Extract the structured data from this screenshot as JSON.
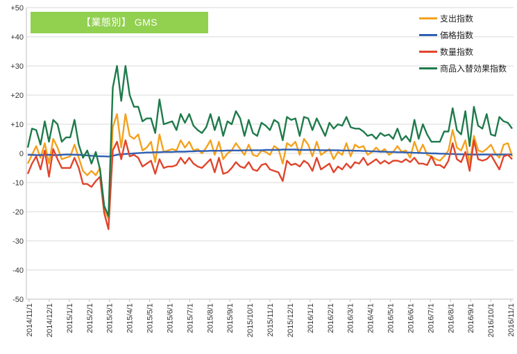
{
  "chart_data": {
    "type": "line",
    "title": "【業態別】 GMS",
    "ylim": [
      -50,
      50
    ],
    "y_ticks": [
      "+50",
      "+40",
      "+30",
      "+20",
      "+10",
      "0",
      "-10",
      "-20",
      "-30",
      "-40",
      "-50"
    ],
    "x_tick_labels": [
      "2014/11/1",
      "2014/12/1",
      "2015/1/1",
      "2015/2/1",
      "2015/3/1",
      "2015/4/1",
      "2015/5/1",
      "2015/6/1",
      "2015/7/1",
      "2015/8/1",
      "2015/9/1",
      "2015/10/1",
      "2015/11/1",
      "2015/12/1",
      "2016/1/1",
      "2016/2/1",
      "2016/3/1",
      "2016/4/1",
      "2016/5/1",
      "2016/6/1",
      "2016/7/1",
      "2016/8/1",
      "2016/9/1",
      "2016/10/1",
      "2016/11/1"
    ],
    "grid": "horizontal",
    "legend_position": "top-right",
    "series": [
      {
        "name": "支出指数",
        "color": "#f4a11c",
        "values": [
          -3.5,
          -0.5,
          2.5,
          -1.5,
          3.5,
          -3.5,
          5.0,
          2.0,
          -2.0,
          -1.5,
          -1.0,
          3.0,
          -1.5,
          -6.0,
          -7.5,
          -6.0,
          -7.5,
          -5.0,
          -19.0,
          -22.5,
          9.0,
          13.5,
          2.0,
          13.5,
          6.0,
          5.0,
          6.5,
          1.0,
          2.0,
          4.0,
          -3.0,
          6.5,
          0.5,
          1.0,
          1.5,
          1.0,
          4.5,
          2.0,
          4.0,
          1.0,
          1.5,
          0.0,
          2.0,
          4.5,
          -0.5,
          4.0,
          -2.0,
          0.0,
          1.0,
          3.5,
          1.5,
          -0.5,
          3.0,
          -0.5,
          -1.0,
          1.0,
          0.5,
          -0.5,
          2.5,
          1.5,
          -3.5,
          3.5,
          2.5,
          4.0,
          -0.5,
          5.0,
          3.0,
          -1.0,
          4.0,
          -0.5,
          0.5,
          1.5,
          -2.0,
          0.5,
          -0.5,
          3.5,
          -1.0,
          3.0,
          2.0,
          2.5,
          -0.5,
          0.5,
          2.0,
          0.5,
          1.5,
          -0.5,
          0.5,
          2.5,
          0.5,
          1.0,
          -1.5,
          4.0,
          0.0,
          3.0,
          -0.5,
          -1.0,
          -2.0,
          -2.5,
          -1.0,
          1.0,
          8.0,
          2.0,
          1.0,
          4.5,
          -3.5,
          6.0,
          1.0,
          0.5,
          1.5,
          3.0,
          0.0,
          -1.5,
          3.0,
          3.5,
          -1.0
        ]
      },
      {
        "name": "価格指数",
        "color": "#2e5fb4",
        "values": [
          -0.5,
          -0.5,
          -0.6,
          -0.6,
          -0.5,
          -0.5,
          -0.6,
          -0.6,
          -0.5,
          -0.4,
          -0.4,
          -0.5,
          -0.5,
          -0.6,
          -0.7,
          -0.8,
          -0.9,
          -1.0,
          -1.0,
          -1.1,
          -0.8,
          -0.5,
          -0.3,
          -0.2,
          -0.1,
          0.0,
          0.1,
          0.2,
          0.3,
          0.3,
          0.4,
          0.4,
          0.5,
          0.5,
          0.5,
          0.6,
          0.6,
          0.6,
          0.7,
          0.7,
          0.8,
          0.8,
          0.8,
          0.9,
          0.9,
          0.9,
          0.9,
          1.0,
          1.0,
          1.0,
          1.0,
          1.1,
          1.1,
          1.1,
          1.1,
          1.1,
          1.2,
          1.2,
          1.2,
          1.2,
          1.3,
          1.3,
          1.3,
          1.3,
          1.2,
          1.2,
          1.2,
          1.2,
          1.2,
          1.1,
          1.1,
          1.1,
          1.1,
          1.1,
          1.0,
          1.0,
          1.0,
          0.9,
          0.9,
          0.8,
          0.8,
          0.7,
          0.7,
          0.6,
          0.6,
          0.5,
          0.5,
          0.4,
          0.4,
          0.3,
          0.3,
          0.2,
          0.2,
          0.1,
          0.1,
          0.0,
          0.0,
          -0.1,
          -0.1,
          -0.2,
          -0.2,
          -0.3,
          -0.3,
          -0.3,
          -0.4,
          -0.4,
          -0.4,
          -0.4,
          -0.4,
          -0.4,
          -0.4,
          -0.4,
          -0.4,
          -0.4,
          -0.4
        ]
      },
      {
        "name": "数量指数",
        "color": "#e0442c",
        "values": [
          -7.0,
          -3.5,
          -1.0,
          -5.5,
          1.0,
          -8.0,
          1.5,
          -2.0,
          -5.0,
          -5.0,
          -5.0,
          -1.5,
          -5.0,
          -10.5,
          -10.5,
          -11.5,
          -9.5,
          -8.0,
          -20.5,
          -26.0,
          1.0,
          4.0,
          -2.0,
          4.5,
          -1.0,
          -0.5,
          -1.5,
          -4.5,
          -3.5,
          -2.5,
          -7.0,
          -2.0,
          -5.0,
          -4.5,
          -4.5,
          -4.0,
          -1.5,
          -3.5,
          -1.5,
          -3.5,
          -4.5,
          -5.0,
          -3.5,
          -2.0,
          -6.5,
          -1.5,
          -7.0,
          -6.5,
          -5.0,
          -3.0,
          -4.5,
          -5.0,
          -3.0,
          -5.5,
          -6.0,
          -4.0,
          -3.5,
          -5.5,
          -6.0,
          -6.5,
          -9.5,
          -2.5,
          -4.0,
          -3.5,
          -4.5,
          -2.5,
          -3.5,
          -6.0,
          -1.5,
          -5.5,
          -4.5,
          -3.5,
          -6.5,
          -4.5,
          -5.5,
          -3.5,
          -5.0,
          -3.0,
          -3.5,
          -1.5,
          -4.0,
          -3.0,
          -2.0,
          -3.5,
          -2.5,
          -3.5,
          -2.5,
          -2.5,
          -3.0,
          -2.0,
          -3.0,
          -1.5,
          -3.5,
          -3.5,
          -4.0,
          -1.0,
          -4.0,
          -4.0,
          -5.0,
          -2.5,
          3.5,
          -2.0,
          -3.0,
          0.5,
          -6.0,
          4.5,
          -2.0,
          -2.5,
          -2.0,
          -0.5,
          -3.0,
          -5.5,
          -1.0,
          -0.5,
          -2.0
        ]
      },
      {
        "name": "商品入替効果指数",
        "color": "#1e7a4a",
        "values": [
          2.0,
          8.5,
          8.0,
          3.0,
          11.0,
          4.0,
          11.5,
          10.0,
          4.0,
          5.5,
          5.5,
          11.5,
          3.0,
          -1.5,
          1.0,
          -3.5,
          0.5,
          -5.5,
          -18.0,
          -21.5,
          22.5,
          30.0,
          18.0,
          30.0,
          20.0,
          16.0,
          16.0,
          11.0,
          12.0,
          12.0,
          7.0,
          18.5,
          10.0,
          10.5,
          11.0,
          8.0,
          13.5,
          10.5,
          13.5,
          9.5,
          8.0,
          7.0,
          9.0,
          13.5,
          8.0,
          12.5,
          6.0,
          11.0,
          10.0,
          14.5,
          12.0,
          6.0,
          11.5,
          7.0,
          6.0,
          10.5,
          9.5,
          8.0,
          11.5,
          10.5,
          4.5,
          12.5,
          11.5,
          12.0,
          6.0,
          12.5,
          12.0,
          8.0,
          12.0,
          9.0,
          6.0,
          10.5,
          8.5,
          10.0,
          9.5,
          12.5,
          9.0,
          8.5,
          8.5,
          7.5,
          6.0,
          6.5,
          5.0,
          7.0,
          6.0,
          6.5,
          5.0,
          8.5,
          4.5,
          6.0,
          4.0,
          11.5,
          5.0,
          10.0,
          6.5,
          4.0,
          4.0,
          4.0,
          7.5,
          7.5,
          15.5,
          8.0,
          6.5,
          14.5,
          2.5,
          16.0,
          9.5,
          8.5,
          13.5,
          6.5,
          6.0,
          12.5,
          11.0,
          10.5,
          8.5
        ]
      }
    ]
  }
}
